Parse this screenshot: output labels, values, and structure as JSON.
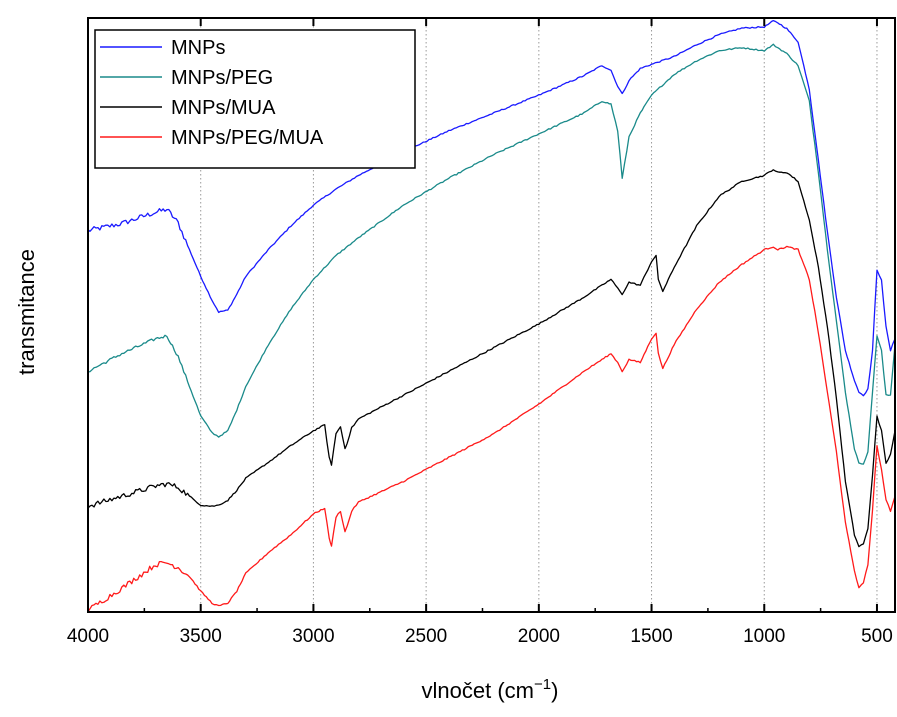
{
  "chart_data": {
    "type": "line",
    "xlabel": "vlnočet (cm",
    "xlabel_sup": "−1",
    "xlabel_end": ")",
    "ylabel": "transmitance",
    "xlim": [
      4000,
      420
    ],
    "ylim": [
      0,
      100
    ],
    "x_reversed": true,
    "y_ticks_shown": false,
    "grid": "vertical dotted",
    "legend": "top-left",
    "x_ticks": [
      "4000",
      "3500",
      "3000",
      "2500",
      "2000",
      "1500",
      "1000",
      "500"
    ],
    "x_tick_values": [
      4000,
      3500,
      3000,
      2500,
      2000,
      1500,
      1000,
      500
    ],
    "grid_x": [
      3500,
      3000,
      2500,
      2000,
      1500,
      1000,
      500
    ],
    "series": [
      {
        "name": "MNPs",
        "color": "#1a1aff",
        "x": [
          4000,
          3850,
          3700,
          3650,
          3600,
          3550,
          3500,
          3450,
          3420,
          3380,
          3340,
          3300,
          3200,
          3100,
          3000,
          2900,
          2800,
          2600,
          2400,
          2200,
          2000,
          1800,
          1720,
          1680,
          1650,
          1630,
          1600,
          1550,
          1500,
          1400,
          1300,
          1200,
          1100,
          1000,
          960,
          940,
          900,
          850,
          800,
          760,
          720,
          680,
          640,
          600,
          580,
          560,
          540,
          520,
          500,
          480,
          460,
          440,
          420
        ],
        "y": [
          64.2,
          65.4,
          67.3,
          67.8,
          65.5,
          61.0,
          56.5,
          52.5,
          50.5,
          50.8,
          53.5,
          56.5,
          61.0,
          65.0,
          68.5,
          71.2,
          73.5,
          77.5,
          81.0,
          84.0,
          87.0,
          90.3,
          92.0,
          91.2,
          88.5,
          87.2,
          89.5,
          91.5,
          92.2,
          93.5,
          95.5,
          97.2,
          98.3,
          98.5,
          99.5,
          99.2,
          98.2,
          96.0,
          88.0,
          76.0,
          64.0,
          53.0,
          44.0,
          39.0,
          37.0,
          36.5,
          37.5,
          44.0,
          57.5,
          56.0,
          48.0,
          44.0,
          46.0
        ]
      },
      {
        "name": "MNPs/PEG",
        "color": "#1a8a8a",
        "x": [
          4000,
          3850,
          3700,
          3650,
          3600,
          3550,
          3500,
          3450,
          3420,
          3380,
          3340,
          3300,
          3200,
          3100,
          3000,
          2900,
          2800,
          2600,
          2400,
          2200,
          2000,
          1800,
          1720,
          1680,
          1650,
          1630,
          1600,
          1550,
          1500,
          1400,
          1300,
          1200,
          1100,
          1000,
          960,
          940,
          900,
          850,
          800,
          760,
          720,
          680,
          640,
          600,
          580,
          560,
          540,
          520,
          500,
          480,
          460,
          440,
          420
        ],
        "y": [
          40.5,
          43.5,
          46.0,
          46.5,
          43.0,
          38.0,
          33.0,
          30.2,
          29.5,
          30.5,
          34.0,
          38.0,
          45.0,
          51.0,
          56.0,
          60.0,
          63.0,
          68.5,
          73.0,
          77.0,
          80.5,
          84.0,
          86.0,
          85.5,
          81.0,
          73.0,
          80.0,
          84.0,
          87.0,
          90.5,
          92.8,
          94.5,
          95.0,
          94.5,
          95.5,
          95.0,
          94.0,
          92.0,
          86.0,
          74.0,
          61.0,
          49.0,
          37.0,
          27.5,
          25.0,
          25.0,
          27.0,
          37.0,
          46.5,
          44.0,
          36.5,
          36.5,
          45.0
        ]
      },
      {
        "name": "MNPs/MUA",
        "color": "#000000",
        "x": [
          4000,
          3850,
          3700,
          3650,
          3600,
          3550,
          3500,
          3450,
          3420,
          3380,
          3340,
          3300,
          3200,
          3100,
          3000,
          2950,
          2930,
          2920,
          2900,
          2880,
          2860,
          2850,
          2830,
          2800,
          2600,
          2400,
          2200,
          2000,
          1800,
          1720,
          1680,
          1650,
          1630,
          1600,
          1550,
          1500,
          1480,
          1470,
          1450,
          1400,
          1300,
          1200,
          1100,
          1000,
          960,
          940,
          900,
          850,
          800,
          760,
          720,
          680,
          640,
          600,
          580,
          560,
          540,
          520,
          500,
          480,
          460,
          440,
          420
        ],
        "y": [
          17.8,
          19.5,
          21.2,
          21.6,
          21.0,
          19.5,
          18.0,
          17.8,
          18.0,
          18.8,
          20.5,
          22.5,
          25.2,
          28.0,
          30.5,
          31.5,
          26.0,
          24.8,
          30.0,
          31.2,
          27.5,
          28.5,
          31.0,
          32.5,
          36.5,
          40.5,
          44.5,
          48.5,
          53.0,
          55.0,
          56.0,
          54.5,
          53.5,
          55.5,
          55.0,
          59.0,
          60.0,
          56.0,
          54.0,
          58.0,
          65.0,
          70.0,
          72.5,
          73.5,
          74.5,
          74.0,
          74.0,
          72.5,
          66.0,
          58.0,
          48.0,
          36.0,
          22.0,
          13.0,
          11.0,
          11.5,
          14.0,
          23.0,
          33.0,
          30.5,
          25.0,
          26.5,
          30.5
        ]
      },
      {
        "name": "MNPs/PEG/MUA",
        "color": "#ff1a1a",
        "x": [
          4000,
          3850,
          3700,
          3650,
          3600,
          3550,
          3500,
          3450,
          3420,
          3380,
          3340,
          3300,
          3200,
          3100,
          3000,
          2950,
          2930,
          2920,
          2900,
          2880,
          2860,
          2850,
          2830,
          2800,
          2600,
          2400,
          2200,
          2000,
          1800,
          1720,
          1680,
          1650,
          1630,
          1600,
          1550,
          1500,
          1480,
          1470,
          1450,
          1400,
          1300,
          1200,
          1100,
          1000,
          960,
          940,
          900,
          850,
          800,
          760,
          720,
          680,
          640,
          600,
          580,
          560,
          540,
          520,
          500,
          480,
          460,
          440,
          420
        ],
        "y": [
          0.3,
          4.0,
          8.0,
          8.3,
          7.5,
          6.0,
          3.5,
          1.5,
          1.0,
          1.5,
          3.5,
          6.5,
          10.0,
          13.0,
          16.5,
          17.5,
          12.5,
          11.0,
          16.0,
          17.0,
          13.5,
          14.5,
          17.0,
          18.5,
          22.0,
          26.0,
          30.0,
          35.0,
          40.5,
          42.5,
          43.5,
          42.0,
          40.5,
          42.5,
          42.0,
          46.0,
          47.0,
          43.5,
          41.0,
          45.0,
          51.0,
          55.5,
          58.5,
          61.0,
          61.5,
          61.0,
          61.5,
          61.0,
          56.0,
          47.0,
          37.0,
          27.0,
          15.0,
          7.0,
          4.0,
          5.0,
          8.0,
          17.0,
          28.0,
          24.0,
          19.0,
          17.0,
          19.5
        ]
      }
    ]
  }
}
